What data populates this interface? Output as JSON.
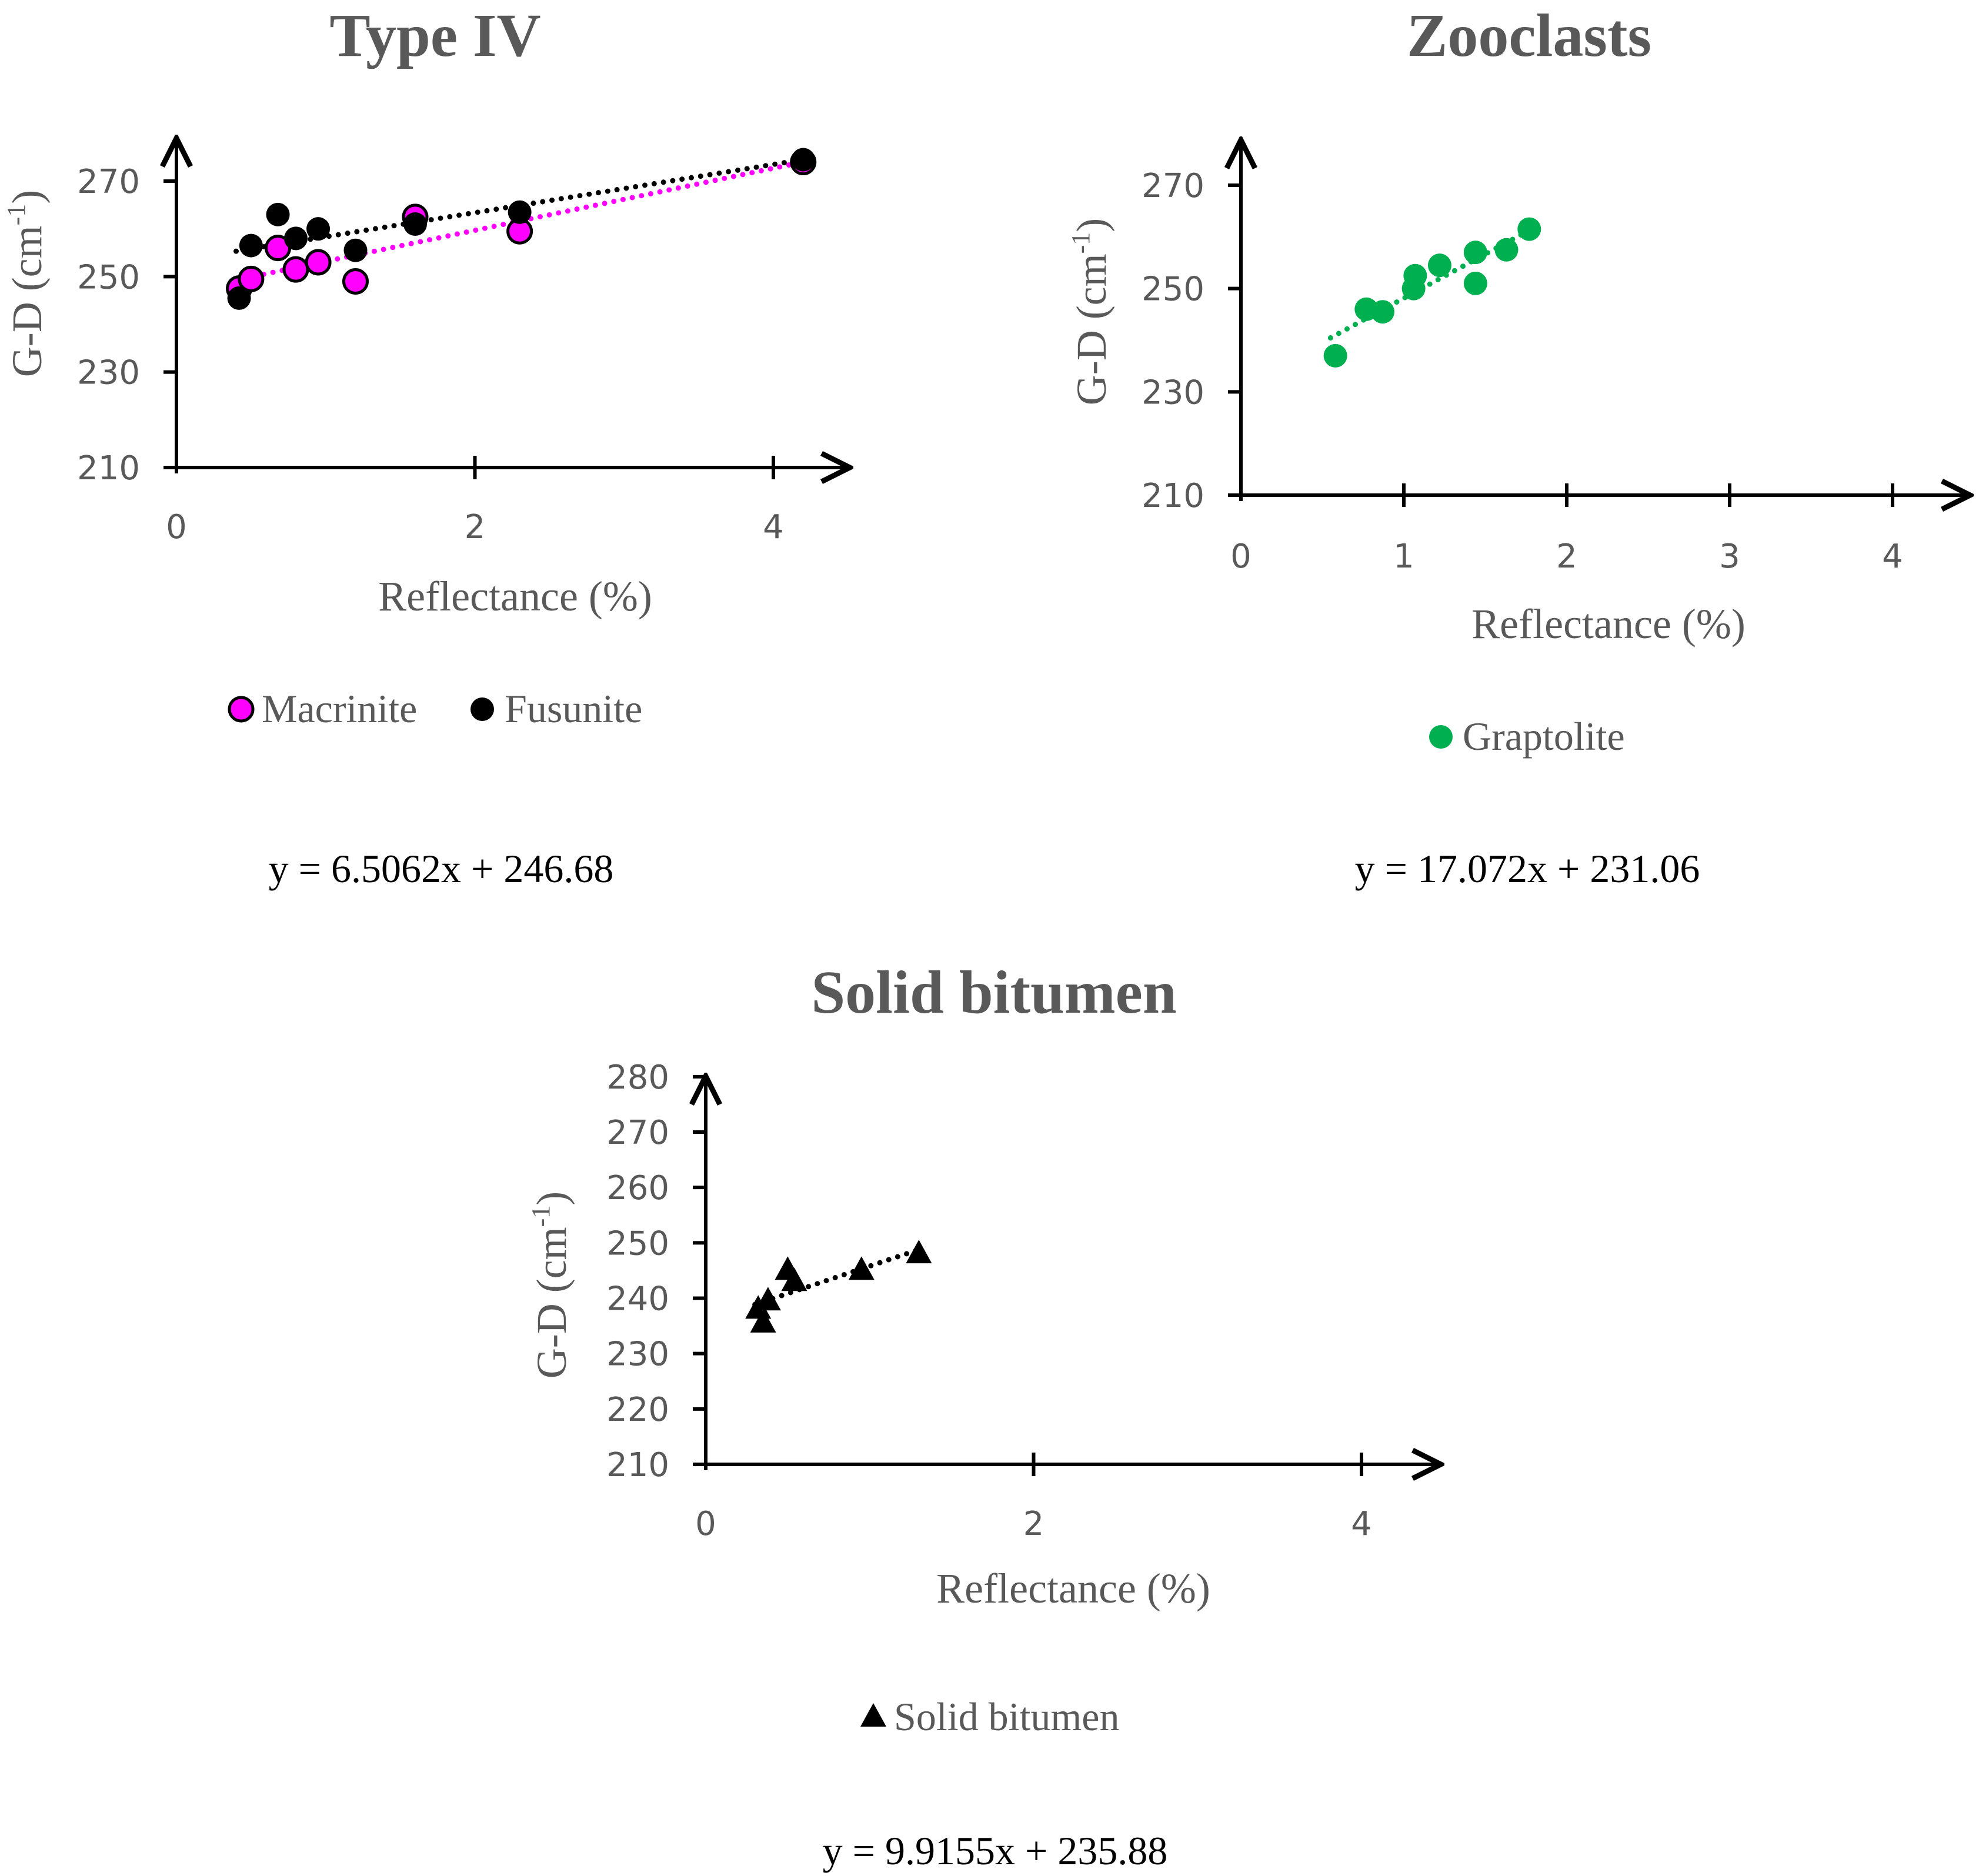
{
  "chart_data": [
    {
      "type": "scatter",
      "title": "Type IV",
      "xlabel": "Reflectance (%)",
      "ylabel": "G-D (cm",
      "ylabel_sup": "-1",
      "ylabel_close": ")",
      "xlim": [
        0,
        4.5
      ],
      "ylim": [
        210,
        280
      ],
      "xticks": [
        0,
        2,
        4
      ],
      "yticks": [
        210,
        230,
        250,
        270
      ],
      "x_tick_marks": [
        2,
        4
      ],
      "legend_position": "bottom",
      "series": [
        {
          "name": "Macrinite",
          "color": "#ff00ff",
          "marker": "circle-outlined",
          "points": [
            [
              0.42,
              247.5
            ],
            [
              0.5,
              249.5
            ],
            [
              0.68,
              256
            ],
            [
              0.8,
              251.5
            ],
            [
              0.95,
              253
            ],
            [
              1.2,
              249
            ],
            [
              1.6,
              262.5
            ],
            [
              2.3,
              259.5
            ],
            [
              4.2,
              274
            ]
          ]
        },
        {
          "name": "Fusunite",
          "color": "#000000",
          "marker": "circle",
          "points": [
            [
              0.42,
              245.5
            ],
            [
              0.5,
              256.5
            ],
            [
              0.68,
              263
            ],
            [
              0.8,
              258
            ],
            [
              0.95,
              260
            ],
            [
              1.2,
              255.5
            ],
            [
              1.6,
              261
            ],
            [
              2.3,
              263.5
            ],
            [
              4.2,
              274.5
            ]
          ]
        }
      ],
      "trendlines": [
        {
          "color": "#ff00ff",
          "x_range": [
            0.4,
            4.2
          ],
          "slope": 6.5062,
          "intercept": 246.68
        },
        {
          "color": "#000000",
          "x_range": [
            0.4,
            4.2
          ],
          "slope": 5.05,
          "intercept": 253.3
        }
      ],
      "equation": "y = 6.5062x + 246.68"
    },
    {
      "type": "scatter",
      "title": "Zooclasts",
      "xlabel": "Reflectance (%)",
      "ylabel": "G-D (cm",
      "ylabel_sup": "-1",
      "ylabel_close": ")",
      "xlim": [
        0,
        4.5
      ],
      "ylim": [
        210,
        280
      ],
      "xticks": [
        0,
        1,
        2,
        3,
        4
      ],
      "yticks": [
        210,
        230,
        250,
        270
      ],
      "x_tick_marks": [
        1,
        2,
        3,
        4
      ],
      "legend_position": "bottom",
      "series": [
        {
          "name": "Graptolite",
          "color": "#00b050",
          "marker": "circle",
          "points": [
            [
              0.58,
              237
            ],
            [
              0.77,
              246
            ],
            [
              0.87,
              245.5
            ],
            [
              1.06,
              250
            ],
            [
              1.07,
              252.5
            ],
            [
              1.22,
              254.5
            ],
            [
              1.44,
              257
            ],
            [
              1.44,
              251
            ],
            [
              1.63,
              257.5
            ],
            [
              1.77,
              261.5
            ]
          ]
        }
      ],
      "trendlines": [
        {
          "color": "#00b050",
          "x_range": [
            0.55,
            1.78
          ],
          "slope": 17.072,
          "intercept": 231.06
        }
      ],
      "equation": "y = 17.072x + 231.06"
    },
    {
      "type": "scatter",
      "title": "Solid bitumen",
      "xlabel": "Reflectance (%)",
      "ylabel": "G-D (cm",
      "ylabel_sup": "-1",
      "ylabel_close": ")",
      "xlim": [
        0,
        4.5
      ],
      "ylim": [
        210,
        280
      ],
      "xticks": [
        0,
        2,
        4
      ],
      "yticks": [
        210,
        220,
        230,
        240,
        250,
        260,
        270,
        280
      ],
      "x_tick_marks": [
        2,
        4
      ],
      "legend_position": "bottom",
      "series": [
        {
          "name": "Solid bitumen",
          "color": "#000000",
          "marker": "triangle",
          "points": [
            [
              0.32,
              238
            ],
            [
              0.35,
              235.5
            ],
            [
              0.38,
              239.5
            ],
            [
              0.5,
              245
            ],
            [
              0.54,
              243
            ],
            [
              0.95,
              245
            ],
            [
              1.3,
              248
            ]
          ]
        }
      ],
      "trendlines": [
        {
          "color": "#000000",
          "x_range": [
            0.3,
            1.32
          ],
          "slope": 9.9155,
          "intercept": 235.88
        }
      ],
      "equation": "y = 9.9155x + 235.88"
    }
  ]
}
